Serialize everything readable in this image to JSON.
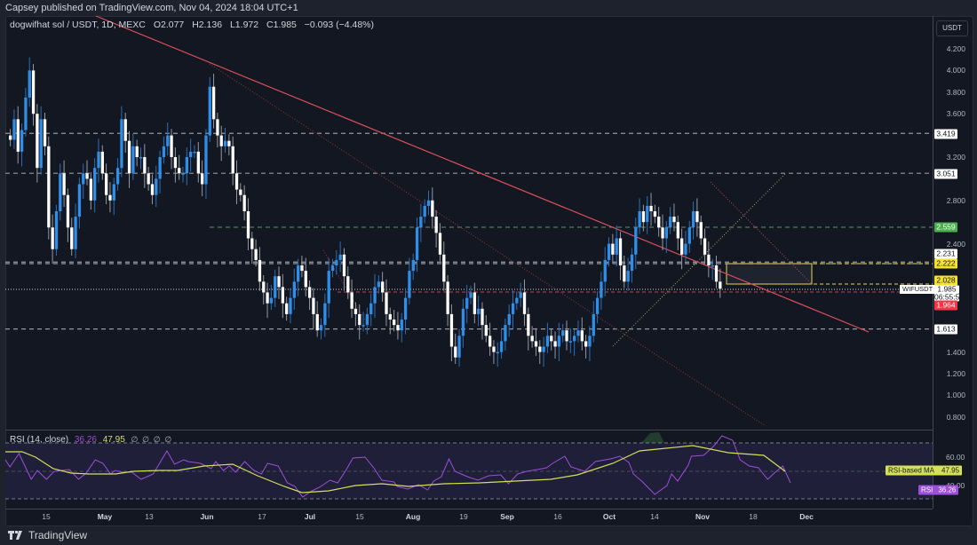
{
  "publish_bar": {
    "text": "Capsey published on TradingView.com, Nov 04, 2024 18:04 UTC+1"
  },
  "legend": {
    "symbol": "dogwifhat sol / USDT, 1D, MEXC",
    "open": "O2.077",
    "high": "H2.136",
    "low": "L1.972",
    "close": "C1.985",
    "change": "−0.093 (−4.48%)"
  },
  "price_axis": {
    "currency_button": "USDT",
    "ticks": [
      "4.200",
      "4.000",
      "3.800",
      "3.600",
      "3.200",
      "2.800",
      "2.400",
      "1.400",
      "1.200",
      "1.000",
      "0.800"
    ],
    "labels": [
      {
        "value": "3.419",
        "bg": "#ffffff",
        "fg": "#131722"
      },
      {
        "value": "3.051",
        "bg": "#ffffff",
        "fg": "#131722"
      },
      {
        "value": "2.559",
        "bg": "#4caf50",
        "fg": "#ffffff"
      },
      {
        "value": "2.231",
        "bg": "#ffffff",
        "fg": "#131722"
      },
      {
        "value": "2.222",
        "bg": "#f5e12f",
        "fg": "#131722"
      },
      {
        "value": "2.028",
        "bg": "#f5e12f",
        "fg": "#131722"
      },
      {
        "value": "1.985",
        "bg": "#ffffff",
        "fg": "#131722"
      },
      {
        "value": "06:55:59",
        "bg": "#ffffff",
        "fg": "#131722"
      },
      {
        "value": "1.964",
        "bg": "#f23645",
        "fg": "#ffffff"
      },
      {
        "value": "1.613",
        "bg": "#ffffff",
        "fg": "#131722"
      }
    ],
    "symbol_tag": "WIFUSDT"
  },
  "rsi": {
    "title": "RSI (14, close)",
    "rsi_value": "36.26",
    "ma_value": "47.95",
    "icons": [
      "∅",
      "∅",
      "∅",
      "∅"
    ],
    "axis_ticks": [
      "60.00",
      "40.00"
    ],
    "ma_tag_label": "RSI-based MA",
    "ma_tag_value": "47.95",
    "rsi_tag_label": "RSI",
    "rsi_tag_value": "36.26",
    "colors": {
      "rsi": "#9c4fd8",
      "ma": "#d4e157",
      "band": "#1f1f3a"
    }
  },
  "time_axis": {
    "ticks": [
      "15",
      "May",
      "13",
      "Jun",
      "17",
      "Jul",
      "15",
      "Aug",
      "19",
      "Sep",
      "16",
      "Oct",
      "14",
      "Nov",
      "18",
      "Dec"
    ]
  },
  "footer": {
    "brand": "TradingView"
  },
  "colors": {
    "up": "#2f8fe8",
    "down": "#ffffff",
    "bg": "#131722",
    "trendline": "#d8505a",
    "box": "#e8d44d"
  },
  "chart_data": {
    "type": "candlestick",
    "title": "dogwifhat sol / USDT, 1D, MEXC",
    "ylabel": "USDT",
    "ylim": [
      0.7,
      4.3
    ],
    "horizontal_levels": [
      3.419,
      3.051,
      2.559,
      2.231,
      2.222,
      2.028,
      1.964,
      1.613
    ],
    "last": {
      "open": 2.077,
      "high": 2.136,
      "low": 1.972,
      "close": 1.985,
      "change": -0.093,
      "change_pct": -4.48
    },
    "zone_box": {
      "top": 2.222,
      "bottom": 2.028
    },
    "x_tick_labels": [
      "15",
      "May",
      "13",
      "Jun",
      "17",
      "Jul",
      "15",
      "Aug",
      "19",
      "Sep",
      "16",
      "Oct",
      "14",
      "Nov",
      "18",
      "Dec"
    ],
    "rsi": {
      "period": 14,
      "value": 36.26,
      "ma": 47.95,
      "bands": [
        70,
        30
      ]
    }
  }
}
